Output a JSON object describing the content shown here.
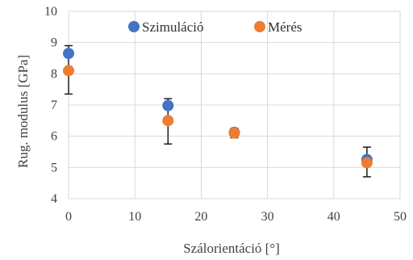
{
  "chart_data": {
    "type": "scatter",
    "title": "",
    "xlabel": "Szálorientáció  [°]",
    "ylabel": "Rug. modulus [GPa]",
    "xlim": [
      0,
      50
    ],
    "ylim": [
      4,
      10
    ],
    "xticks": [
      "0",
      "10",
      "20",
      "30",
      "40",
      "50"
    ],
    "yticks": [
      "4",
      "5",
      "6",
      "7",
      "8",
      "9",
      "10"
    ],
    "grid": true,
    "legend_position": "top",
    "series": [
      {
        "name": "Szimuláció",
        "color": "#4472C4",
        "points": [
          {
            "x": 0,
            "y": 8.65
          },
          {
            "x": 15,
            "y": 6.98
          },
          {
            "x": 25,
            "y": 6.12
          },
          {
            "x": 45,
            "y": 5.25
          }
        ]
      },
      {
        "name": "Mérés",
        "color": "#ED7D31",
        "points": [
          {
            "x": 0,
            "y": 8.1,
            "err_low": 7.35,
            "err_high": 8.9
          },
          {
            "x": 15,
            "y": 6.5,
            "err_low": 5.75,
            "err_high": 7.2
          },
          {
            "x": 25,
            "y": 6.1,
            "err_low": 5.95,
            "err_high": 6.25
          },
          {
            "x": 45,
            "y": 5.15,
            "err_low": 4.7,
            "err_high": 5.65
          }
        ]
      }
    ]
  }
}
